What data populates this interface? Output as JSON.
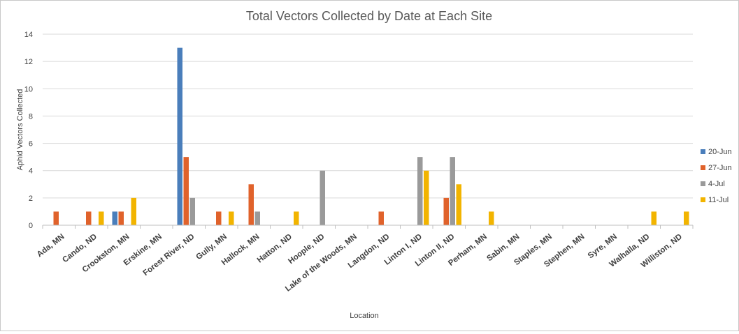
{
  "chart_data": {
    "type": "bar",
    "title": "Total Vectors Collected by Date at Each Site",
    "xlabel": "Location",
    "ylabel": "Aphid Vectors Collected",
    "ylim": [
      0,
      14
    ],
    "yticks": [
      0,
      2,
      4,
      6,
      8,
      10,
      12,
      14
    ],
    "grid": true,
    "legend_position": "right",
    "categories": [
      "Ada, MN",
      "Cando, ND",
      "Crookston, MN",
      "Erskine, MN",
      "Forest River, ND",
      "Gully, MN",
      "Hallock, MN",
      "Hatton, ND",
      "Hoople, ND",
      "Lake of the Woods, MN",
      "Langdon, ND",
      "Linton I, ND",
      "Linton II, ND",
      "Perham, MN",
      "Sabin, MN",
      "Staples, MN",
      "Stephen, MN",
      "Syre, MN",
      "Walhalla, ND",
      "Williston, ND"
    ],
    "series": [
      {
        "name": "20-Jun",
        "color": "#4a7ebb",
        "values": [
          0,
          0,
          1,
          0,
          13,
          0,
          0,
          0,
          0,
          0,
          0,
          0,
          0,
          0,
          0,
          0,
          0,
          0,
          0,
          0
        ]
      },
      {
        "name": "27-Jun",
        "color": "#e0622b",
        "values": [
          1,
          1,
          1,
          0,
          5,
          1,
          3,
          0,
          0,
          0,
          1,
          0,
          2,
          0,
          0,
          0,
          0,
          0,
          0,
          0
        ]
      },
      {
        "name": "4-Jul",
        "color": "#9a9a9a",
        "values": [
          0,
          0,
          0,
          0,
          2,
          0,
          1,
          0,
          4,
          0,
          0,
          5,
          5,
          0,
          0,
          0,
          0,
          0,
          0,
          0
        ]
      },
      {
        "name": "11-Jul",
        "color": "#f2b400",
        "values": [
          0,
          1,
          2,
          0,
          0,
          1,
          0,
          1,
          0,
          0,
          0,
          4,
          3,
          1,
          0,
          0,
          0,
          0,
          1,
          1
        ]
      }
    ]
  }
}
